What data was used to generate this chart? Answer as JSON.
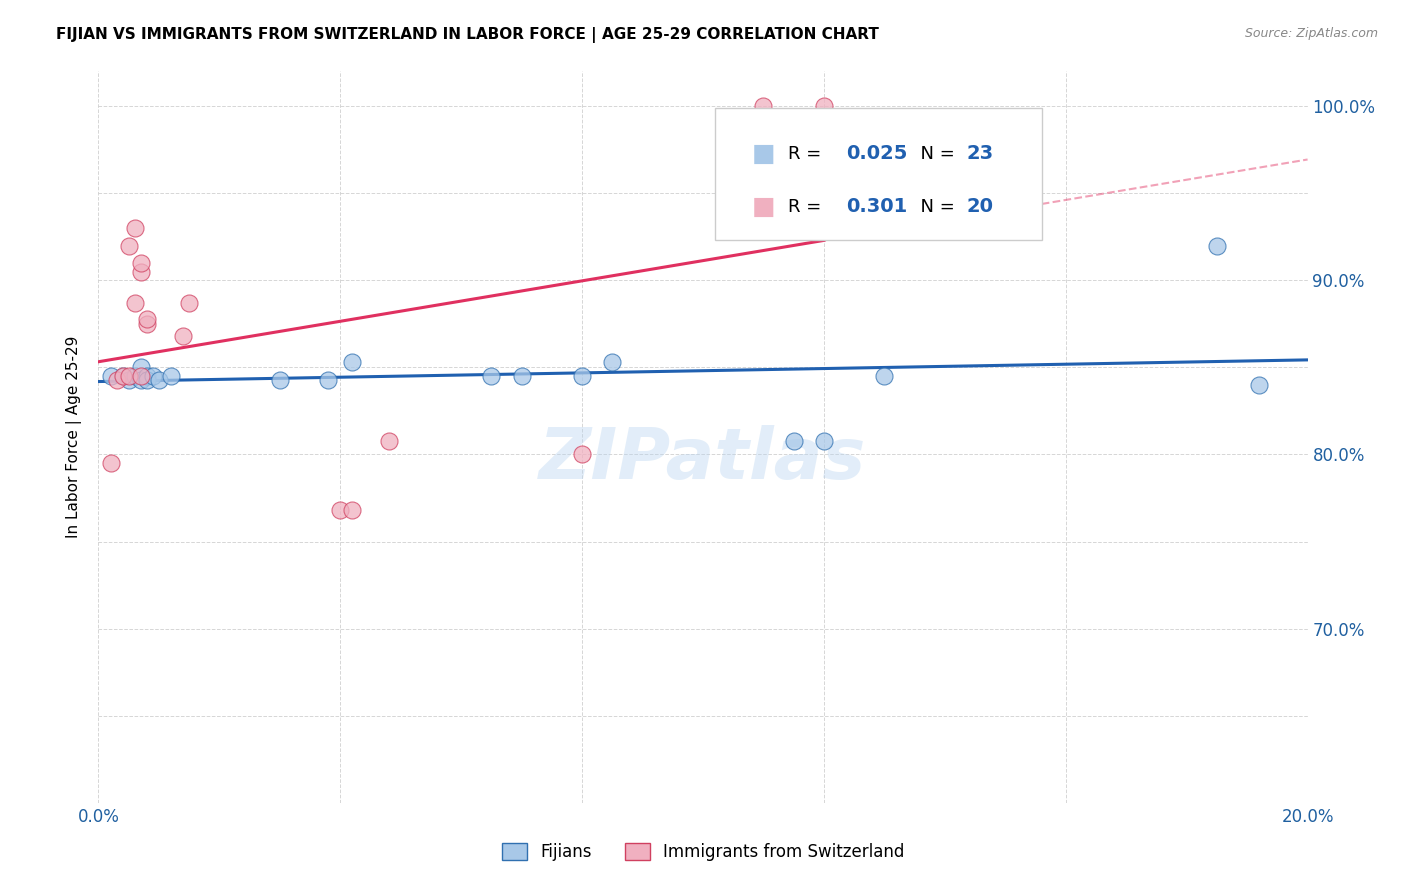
{
  "title": "FIJIAN VS IMMIGRANTS FROM SWITZERLAND IN LABOR FORCE | AGE 25-29 CORRELATION CHART",
  "source": "Source: ZipAtlas.com",
  "ylabel_label": "In Labor Force | Age 25-29",
  "xlim": [
    0.0,
    0.2
  ],
  "ylim": [
    0.6,
    1.02
  ],
  "xtick_positions": [
    0.0,
    0.04,
    0.08,
    0.12,
    0.16,
    0.2
  ],
  "xtick_labels": [
    "0.0%",
    "",
    "",
    "",
    "",
    "20.0%"
  ],
  "ytick_positions": [
    0.6,
    0.65,
    0.7,
    0.75,
    0.8,
    0.85,
    0.9,
    0.95,
    1.0
  ],
  "ytick_labels": [
    "",
    "",
    "70.0%",
    "",
    "80.0%",
    "",
    "90.0%",
    "",
    "100.0%"
  ],
  "blue_fill": "#a8c8e8",
  "blue_edge": "#3070b0",
  "pink_fill": "#f0b0c0",
  "pink_edge": "#d04060",
  "blue_line": "#2060b0",
  "pink_line": "#e03060",
  "watermark": "ZIPatlas",
  "legend_r_blue": "0.025",
  "legend_n_blue": "23",
  "legend_r_pink": "0.301",
  "legend_n_pink": "20",
  "fijian_x": [
    0.002,
    0.004,
    0.005,
    0.006,
    0.007,
    0.007,
    0.008,
    0.008,
    0.009,
    0.01,
    0.012,
    0.03,
    0.038,
    0.042,
    0.065,
    0.07,
    0.08,
    0.085,
    0.115,
    0.12,
    0.13,
    0.185,
    0.192
  ],
  "fijian_y": [
    0.845,
    0.845,
    0.843,
    0.845,
    0.85,
    0.843,
    0.845,
    0.843,
    0.845,
    0.843,
    0.845,
    0.843,
    0.843,
    0.853,
    0.845,
    0.845,
    0.845,
    0.853,
    0.808,
    0.808,
    0.845,
    0.92,
    0.84
  ],
  "swiss_x": [
    0.002,
    0.003,
    0.004,
    0.005,
    0.005,
    0.006,
    0.006,
    0.007,
    0.007,
    0.007,
    0.008,
    0.008,
    0.014,
    0.015,
    0.04,
    0.042,
    0.048,
    0.08,
    0.11,
    0.12
  ],
  "swiss_y": [
    0.795,
    0.843,
    0.845,
    0.845,
    0.92,
    0.93,
    0.887,
    0.905,
    0.91,
    0.845,
    0.875,
    0.878,
    0.868,
    0.887,
    0.768,
    0.768,
    0.808,
    0.8,
    1.0,
    1.0
  ],
  "background_color": "#ffffff",
  "grid_color": "#cccccc"
}
